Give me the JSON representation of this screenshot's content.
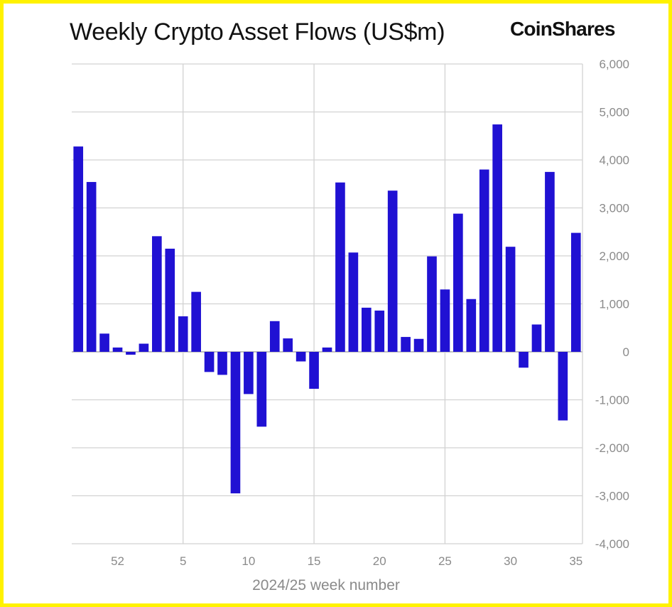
{
  "chart_data": {
    "type": "bar",
    "title": "Weekly Crypto Asset Flows (US$m)",
    "brand": "CoinShares",
    "xlabel": "2024/25 week number",
    "ylabel": "",
    "ylim": [
      -4000,
      6000
    ],
    "y_ticks": [
      6000,
      5000,
      4000,
      3000,
      2000,
      1000,
      0,
      -1000,
      -2000,
      -3000,
      -4000
    ],
    "y_tick_labels": [
      "6,000",
      "5,000",
      "4,000",
      "3,000",
      "2,000",
      "1,000",
      "0",
      "-1,000",
      "-2,000",
      "-3,000",
      "-4,000"
    ],
    "x_tick_labels": [
      {
        "label": "52",
        "index": 3
      },
      {
        "label": "5",
        "index": 8
      },
      {
        "label": "10",
        "index": 13
      },
      {
        "label": "15",
        "index": 18
      },
      {
        "label": "20",
        "index": 23
      },
      {
        "label": "25",
        "index": 28
      },
      {
        "label": "30",
        "index": 33
      },
      {
        "label": "35",
        "index": 38
      }
    ],
    "grid_v_after_index": [
      8.5,
      18.5,
      28.5
    ],
    "grid": true,
    "bar_color": "#2011d3",
    "values": [
      4280,
      3540,
      380,
      90,
      -60,
      170,
      2410,
      2150,
      740,
      1250,
      -420,
      -480,
      -2950,
      -880,
      -1560,
      640,
      280,
      -200,
      -770,
      90,
      3530,
      2070,
      920,
      860,
      3360,
      310,
      270,
      1990,
      1300,
      2880,
      1100,
      3800,
      4740,
      2190,
      -330,
      570,
      3750,
      -1430,
      2480
    ]
  }
}
